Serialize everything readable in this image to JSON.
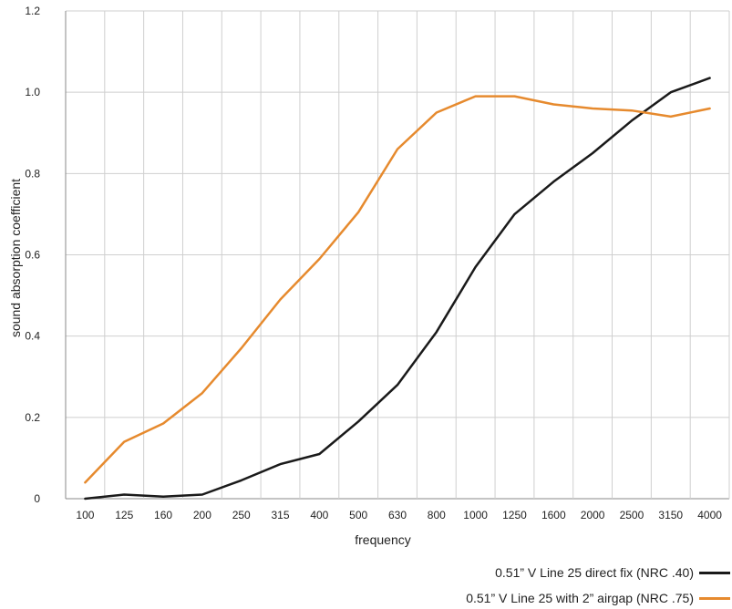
{
  "chart_data": {
    "type": "line",
    "title": "",
    "xlabel": "frequency",
    "ylabel": "sound absorption coefficient",
    "ylim": [
      0,
      1.2
    ],
    "yticks": [
      "0",
      "0.2",
      "0.4",
      "0.6",
      "0.8",
      "1.0",
      "1.2"
    ],
    "categories": [
      "100",
      "125",
      "160",
      "200",
      "250",
      "315",
      "400",
      "500",
      "630",
      "800",
      "1000",
      "1250",
      "1600",
      "2000",
      "2500",
      "3150",
      "4000"
    ],
    "grid": true,
    "legend_placement": "bottom-right",
    "series": [
      {
        "name": "0.51” V Line 25 direct fix (NRC .40)",
        "color": "#1a1a1a",
        "values": [
          0.0,
          0.01,
          0.005,
          0.01,
          0.045,
          0.085,
          0.11,
          0.19,
          0.28,
          0.41,
          0.57,
          0.7,
          0.78,
          0.85,
          0.93,
          1.0,
          1.035
        ]
      },
      {
        "name": "0.51” V Line 25 with 2” airgap (NRC .75)",
        "color": "#e68a2e",
        "values": [
          0.04,
          0.14,
          0.185,
          0.26,
          0.37,
          0.49,
          0.59,
          0.705,
          0.86,
          0.95,
          0.99,
          0.99,
          0.97,
          0.96,
          0.955,
          0.94,
          0.96
        ]
      }
    ]
  }
}
